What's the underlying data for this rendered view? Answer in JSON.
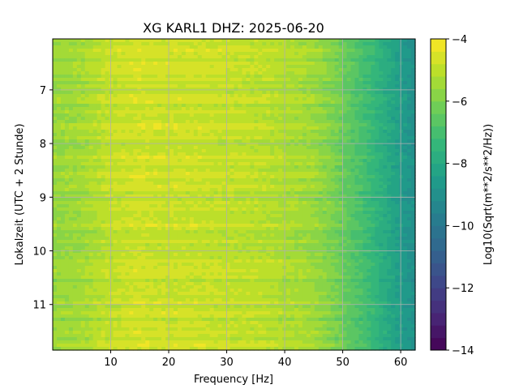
{
  "chart_data": {
    "type": "heatmap",
    "title": "XG KARL1  DHZ: 2025-06-20",
    "xlabel": "Frequency [Hz]",
    "ylabel": "Lokalzeit (UTC + 2 Stunde)",
    "xlim": [
      0,
      62.5
    ],
    "ylim": [
      6.05,
      11.85
    ],
    "y_inverted": true,
    "xticks": [
      10,
      20,
      30,
      40,
      50,
      60
    ],
    "yticks": [
      7,
      8,
      9,
      10,
      11
    ],
    "grid": true,
    "colormap": "viridis",
    "colorbar": {
      "label": "Log10(Sqrt(m**2/s**2/Hz))",
      "range": [
        -14,
        -4
      ],
      "ticks": [
        -4,
        -6,
        -8,
        -10,
        -12,
        -14
      ],
      "levels": 25
    },
    "spectral_profile": {
      "frequency_hz": [
        0,
        5,
        10,
        15,
        20,
        25,
        30,
        35,
        40,
        45,
        48,
        50,
        55,
        60,
        62.5
      ],
      "log_value": [
        -5.6,
        -5.4,
        -4.9,
        -4.7,
        -4.8,
        -4.8,
        -4.9,
        -5.0,
        -5.2,
        -5.5,
        -5.9,
        -6.3,
        -7.3,
        -8.5,
        -9.0
      ]
    },
    "time_range_hours": [
      6.05,
      11.85
    ]
  },
  "colors": {
    "viridis_stops": [
      "#440154",
      "#482878",
      "#3e4989",
      "#31688e",
      "#26828e",
      "#1f9e89",
      "#35b779",
      "#6ece58",
      "#b5de2b",
      "#fde725"
    ]
  }
}
